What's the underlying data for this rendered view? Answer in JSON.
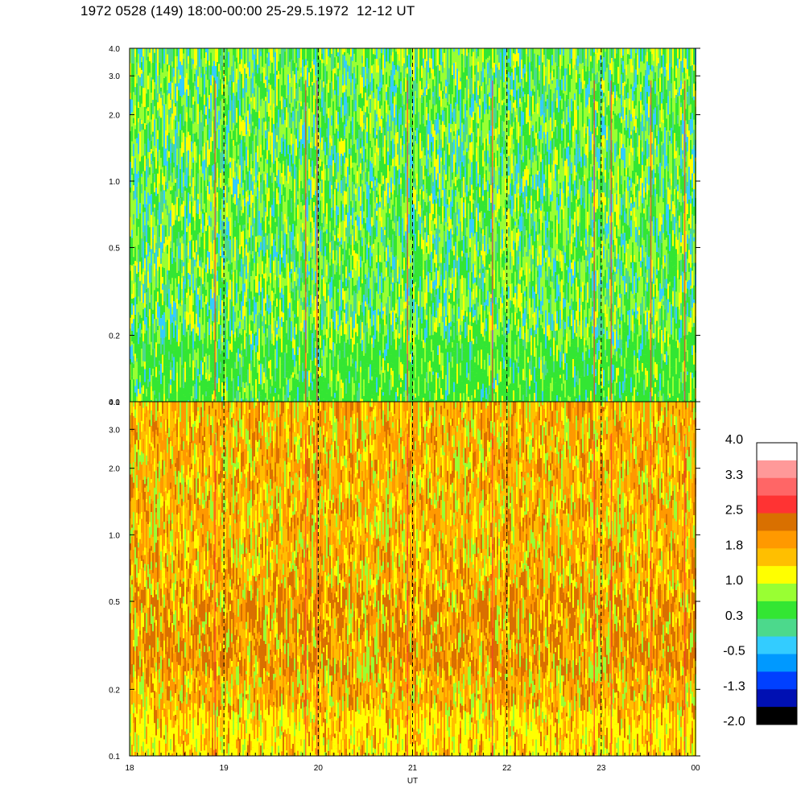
{
  "title": "1972 0528 (149) 18:00-00:00 25-29.5.1972  12-12 UT",
  "chart_data": [
    {
      "type": "heatmap",
      "panel": "top",
      "x_range_hours": [
        18,
        24
      ],
      "y_ticks": [
        "0.1",
        "0.2",
        "0.5",
        "1.0",
        "2.0",
        "3.0",
        "4.0"
      ],
      "ylim": [
        0.1,
        4.0
      ],
      "y_scale": "log",
      "dominant_level": "0.3 to 1.0",
      "vertical_dashed_lines_at": [
        19,
        20,
        21,
        22,
        23
      ]
    },
    {
      "type": "heatmap",
      "panel": "bottom",
      "x_range_hours": [
        18,
        24
      ],
      "x_ticks": [
        "18",
        "19",
        "20",
        "21",
        "22",
        "23",
        "00"
      ],
      "xlabel": "UT",
      "y_ticks": [
        "0.1",
        "0.2",
        "0.5",
        "1.0",
        "2.0",
        "3.0",
        "4.0"
      ],
      "ylim": [
        0.1,
        4.0
      ],
      "y_scale": "log",
      "dominant_level": "1.0 to 2.5",
      "vertical_dashed_lines_at": [
        19,
        20,
        21,
        22,
        23
      ]
    }
  ],
  "colorbar": {
    "labels": [
      "4.0",
      "3.3",
      "2.5",
      "1.8",
      "1.0",
      "0.3",
      "-0.5",
      "-1.3",
      "-2.0"
    ],
    "colors": [
      "#ffffff",
      "#ff9999",
      "#ff6666",
      "#ff3333",
      "#d97000",
      "#ff9900",
      "#ffbf00",
      "#ffff00",
      "#99ff33",
      "#33e633",
      "#4cd98c",
      "#33ccff",
      "#0099ff",
      "#0040ff",
      "#0010b3",
      "#000000"
    ]
  }
}
